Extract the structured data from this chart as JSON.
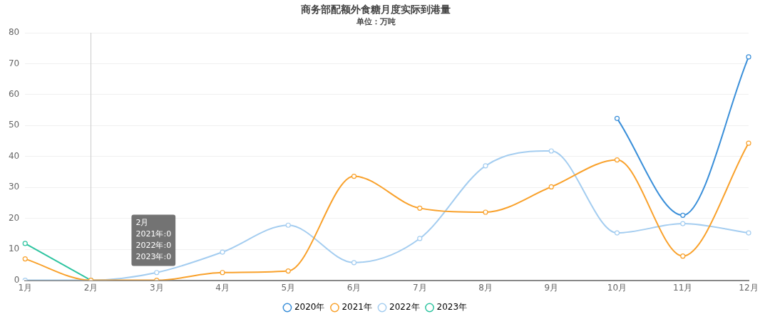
{
  "chart_data": {
    "type": "line",
    "title": "商务部配额外食糖月度实际到港量",
    "subtitle": "单位：万吨",
    "categories": [
      "1月",
      "2月",
      "3月",
      "4月",
      "5月",
      "6月",
      "7月",
      "8月",
      "9月",
      "10月",
      "11月",
      "12月"
    ],
    "series": [
      {
        "name": "2020年",
        "color": "#3a8fd9",
        "values": [
          null,
          null,
          null,
          null,
          null,
          null,
          null,
          null,
          null,
          52.3,
          21,
          72.2
        ]
      },
      {
        "name": "2021年",
        "color": "#f9a12b",
        "values": [
          6.9,
          0,
          0,
          2.5,
          3,
          33.6,
          23.3,
          22,
          30.2,
          38.9,
          7.8,
          44.3
        ]
      },
      {
        "name": "2022年",
        "color": "#a4cdf0",
        "values": [
          0,
          0,
          2.5,
          9.1,
          17.8,
          5.7,
          13.5,
          37,
          41.8,
          15.3,
          18.3,
          15.3
        ]
      },
      {
        "name": "2023年",
        "color": "#2ec4a0",
        "values": [
          11.9,
          0,
          null,
          null,
          null,
          null,
          null,
          null,
          null,
          null,
          null,
          null
        ]
      }
    ],
    "ylim": [
      0,
      80
    ],
    "yticks": [
      0,
      10,
      20,
      30,
      40,
      50,
      60,
      70,
      80
    ],
    "grid": "y",
    "legend": "bottom",
    "marker": "circle",
    "line_style": "solid",
    "ref_lines": [
      {
        "axis": "x",
        "value": "2月",
        "color": "#cccccc"
      }
    ],
    "annotations": [
      "2月\n2021年:0\n2022年:0\n2023年:0"
    ]
  }
}
